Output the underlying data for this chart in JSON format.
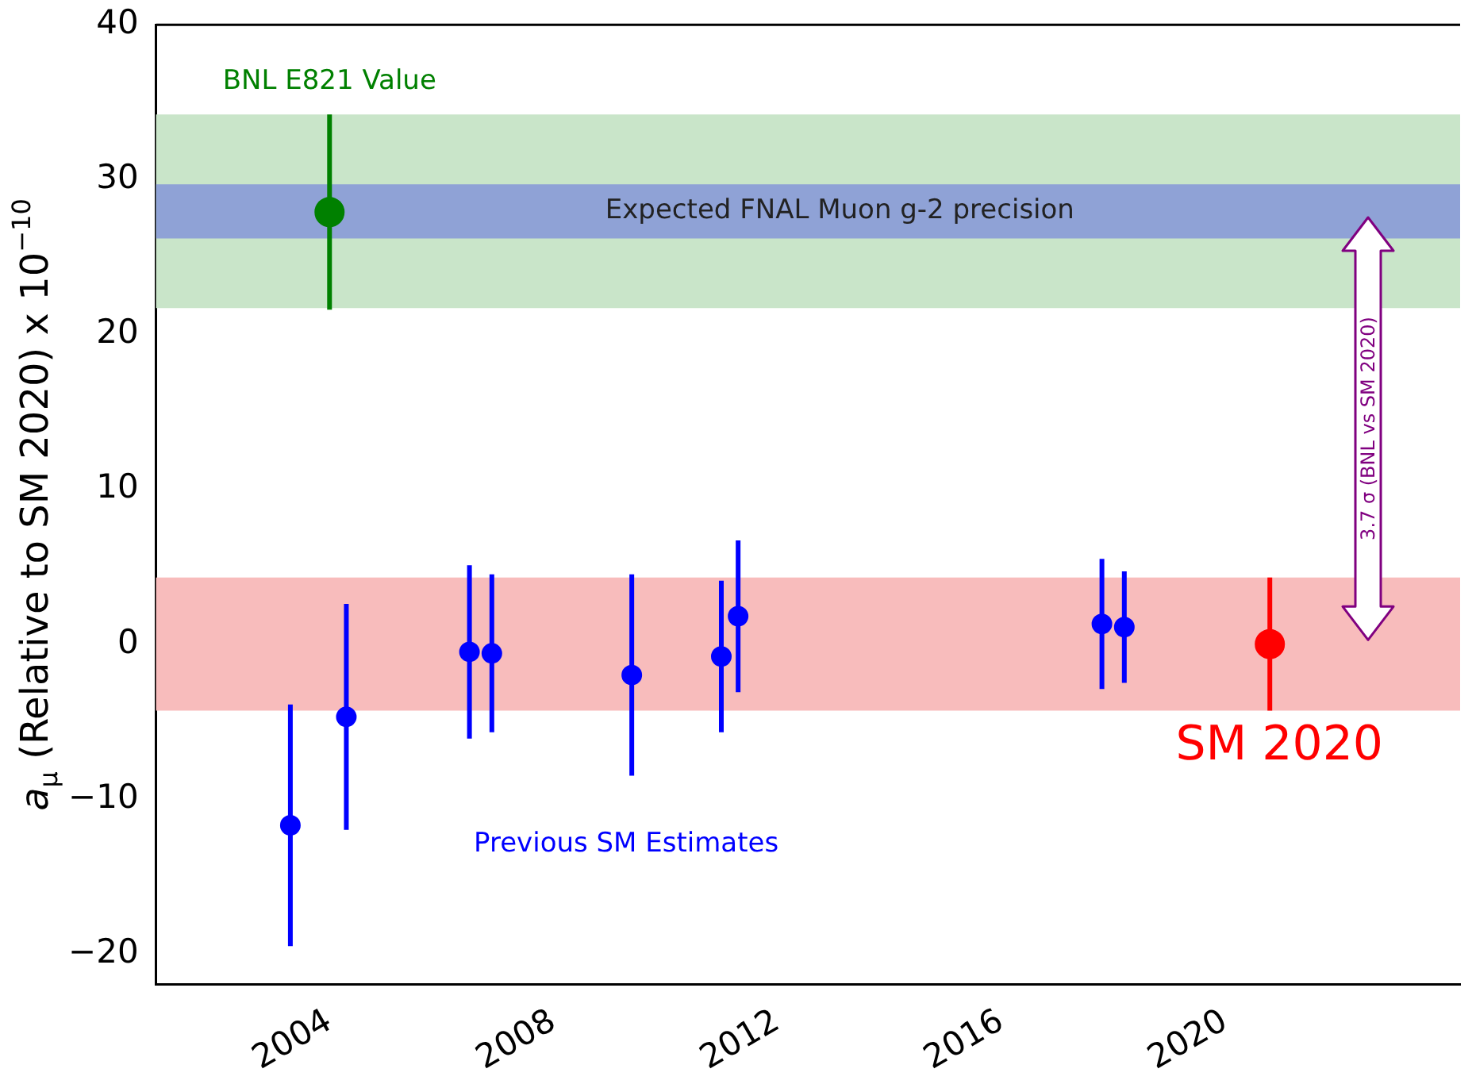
{
  "chart_data": {
    "type": "scatter",
    "ylabel": "a$_{μ}$ (Relative to SM 2020) x 10$^{−10}$",
    "xlim": [
      2000.9,
      2024.2
    ],
    "xticks": [
      2004,
      2008,
      2012,
      2016,
      2020
    ],
    "ylim": [
      -22,
      40
    ],
    "yticks": [
      -20,
      -10,
      0,
      10,
      20,
      30,
      40
    ],
    "grid": false,
    "legend": false,
    "marker": "circle",
    "bands": [
      {
        "axis": "y",
        "from": 21.7,
        "to": 34.2,
        "label": null,
        "color": "#c9e5c9"
      },
      {
        "axis": "y",
        "from": 26.2,
        "to": 29.7,
        "label": "Expected FNAL Muon g-2 precision",
        "color": "#8fa2d6"
      },
      {
        "axis": "y",
        "from": -4.3,
        "to": 4.3,
        "label": null,
        "color": "#f8bcbc"
      }
    ],
    "series": [
      {
        "name": "BNL E821 Value",
        "color": "#008000",
        "x": [
          2004.0
        ],
        "values": [
          27.9
        ],
        "errors": [
          6.3
        ]
      },
      {
        "name": "Previous SM Estimates",
        "color": "#0000ff",
        "x": [
          2003.3,
          2004.3,
          2006.5,
          2006.9,
          2009.4,
          2011.0,
          2011.3,
          2017.8,
          2018.2
        ],
        "values": [
          -11.7,
          -4.7,
          -0.5,
          -0.6,
          -2.0,
          -0.8,
          1.8,
          1.3,
          1.1
        ],
        "errors": [
          7.8,
          7.3,
          5.6,
          5.1,
          6.5,
          4.9,
          4.9,
          4.2,
          3.6
        ]
      },
      {
        "name": "SM 2020",
        "color": "#ff0000",
        "x": [
          2020.8
        ],
        "values": [
          0
        ],
        "errors": [
          4.3
        ]
      }
    ],
    "annotations": [
      "3.7 σ (BNL vs SM 2020)"
    ]
  }
}
